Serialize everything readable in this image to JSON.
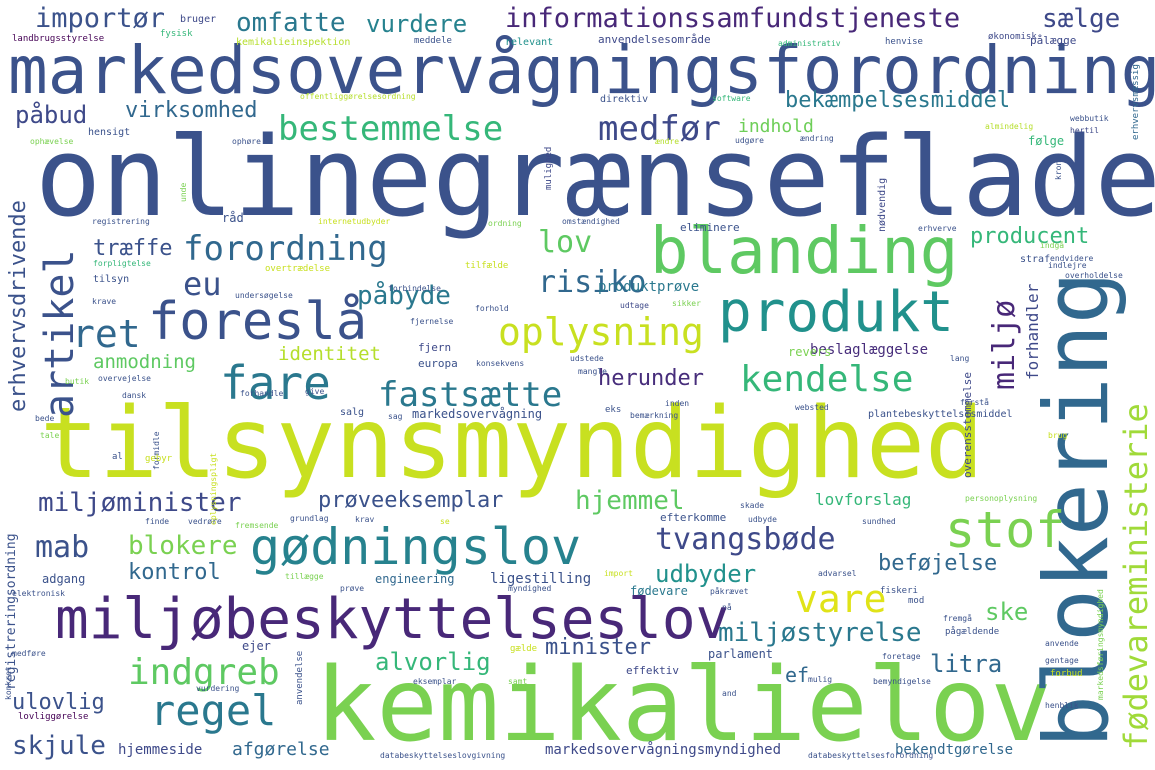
{
  "words": [
    {
      "text": "onlinegrænseflade",
      "color": "#3b528b"
    },
    {
      "text": "tilsynsmyndighed",
      "color": "#c8e020"
    },
    {
      "text": "kemikalielov",
      "color": "#7ad151"
    },
    {
      "text": "markedsovervågningsforordning",
      "color": "#3b528b"
    },
    {
      "text": "blokering",
      "color": "#31688e"
    },
    {
      "text": "miljøbeskyttelseslov",
      "color": "#482878"
    },
    {
      "text": "gødningslov",
      "color": "#26828e"
    },
    {
      "text": "produkt",
      "color": "#21918c"
    },
    {
      "text": "blanding",
      "color": "#5ec962"
    },
    {
      "text": "foreslå",
      "color": "#3b528b"
    },
    {
      "text": "fare",
      "color": "#2a788e"
    },
    {
      "text": "stof",
      "color": "#7ad151"
    },
    {
      "text": "bestemmelse",
      "color": "#35b779"
    },
    {
      "text": "oplysning",
      "color": "#c8e020"
    },
    {
      "text": "fødevareministerie",
      "color": "#a0da39"
    },
    {
      "text": "regel",
      "color": "#2a788e"
    },
    {
      "text": "indgreb",
      "color": "#5ec962"
    },
    {
      "text": "informationssamfundstjeneste",
      "color": "#482878"
    },
    {
      "text": "medfør",
      "color": "#3e4989"
    },
    {
      "text": "forordning",
      "color": "#31688e"
    },
    {
      "text": "artikel",
      "color": "#3b528b"
    },
    {
      "text": "fastsætte",
      "color": "#2a788e"
    },
    {
      "text": "kendelse",
      "color": "#35b779"
    },
    {
      "text": "tvangsbøde",
      "color": "#3e4989"
    },
    {
      "text": "erhvervsdrivende",
      "color": "#3b528b"
    },
    {
      "text": "miljø",
      "color": "#482878"
    },
    {
      "text": "vare",
      "color": "#e0e318"
    },
    {
      "text": "miljøstyrelse",
      "color": "#2a788e"
    },
    {
      "text": "importør",
      "color": "#3b528b"
    },
    {
      "text": "omfatte",
      "color": "#2a788e"
    },
    {
      "text": "vurdere",
      "color": "#26828e"
    },
    {
      "text": "sælge",
      "color": "#3e4989"
    },
    {
      "text": "bekæmpelsesmiddel",
      "color": "#2a788e"
    },
    {
      "text": "påbud",
      "color": "#3e4989"
    },
    {
      "text": "virksomhed",
      "color": "#31688e"
    },
    {
      "text": "indhold",
      "color": "#6ece58"
    },
    {
      "text": "ret",
      "color": "#31688e"
    },
    {
      "text": "eu",
      "color": "#3b528b"
    },
    {
      "text": "lov",
      "color": "#5ec962"
    },
    {
      "text": "producent",
      "color": "#35b779"
    },
    {
      "text": "risiko",
      "color": "#31688e"
    },
    {
      "text": "påbyde",
      "color": "#2a788e"
    },
    {
      "text": "træffe",
      "color": "#3b528b"
    },
    {
      "text": "herunder",
      "color": "#472d7b"
    },
    {
      "text": "forhandler",
      "color": "#3e4989"
    },
    {
      "text": "identitet",
      "color": "#b5de2b"
    },
    {
      "text": "anmodning",
      "color": "#5ec962"
    },
    {
      "text": "miljøminister",
      "color": "#3e4989"
    },
    {
      "text": "prøveeksemplar",
      "color": "#3b528b"
    },
    {
      "text": "hjemmel",
      "color": "#5ec962"
    },
    {
      "text": "lovforslag",
      "color": "#35b779"
    },
    {
      "text": "mab",
      "color": "#3b528b"
    },
    {
      "text": "blokere",
      "color": "#7ad151"
    },
    {
      "text": "kontrol",
      "color": "#31688e"
    },
    {
      "text": "beføjelse",
      "color": "#31688e"
    },
    {
      "text": "udbyder",
      "color": "#21918c"
    },
    {
      "text": "ske",
      "color": "#5ec962"
    },
    {
      "text": "minister",
      "color": "#3b528b"
    },
    {
      "text": "alvorlig",
      "color": "#35b779"
    },
    {
      "text": "litra",
      "color": "#31688e"
    },
    {
      "text": "ef",
      "color": "#31688e"
    },
    {
      "text": "ulovlig",
      "color": "#3b528b"
    },
    {
      "text": "skjule",
      "color": "#3b528b"
    },
    {
      "text": "afgørelse",
      "color": "#31688e"
    },
    {
      "text": "hjemmeside",
      "color": "#3e4989"
    },
    {
      "text": "markedsovervågningsmyndighed",
      "color": "#3e4989"
    },
    {
      "text": "bekendtgørelse",
      "color": "#31688e"
    },
    {
      "text": "produktprøve",
      "color": "#2a788e"
    },
    {
      "text": "beslaglæggelse",
      "color": "#472d7b"
    },
    {
      "text": "registreringsordning",
      "color": "#3b528b"
    },
    {
      "text": "adgang",
      "color": "#3b528b"
    },
    {
      "text": "ligestilling",
      "color": "#3b528b"
    },
    {
      "text": "engineering",
      "color": "#31688e"
    },
    {
      "text": "fødevare",
      "color": "#2a788e"
    },
    {
      "text": "markedsovervågning",
      "color": "#3b528b"
    },
    {
      "text": "europa",
      "color": "#3b528b"
    },
    {
      "text": "fjern",
      "color": "#3e4989"
    },
    {
      "text": "overensstemmelse",
      "color": "#3e4989"
    },
    {
      "text": "revers",
      "color": "#7ad151"
    },
    {
      "text": "ejer",
      "color": "#3e4989"
    },
    {
      "text": "parlament",
      "color": "#3b528b"
    },
    {
      "text": "effektiv",
      "color": "#3e4989"
    },
    {
      "text": "efterkomme",
      "color": "#3b528b"
    },
    {
      "text": "landbrugsstyrelse",
      "color": "#440154"
    },
    {
      "text": "bruger",
      "color": "#3e4989"
    },
    {
      "text": "fysisk",
      "color": "#35b779"
    },
    {
      "text": "kemikalieinspektion",
      "color": "#b5de2b"
    },
    {
      "text": "meddele",
      "color": "#3b528b"
    },
    {
      "text": "relevant",
      "color": "#21918c"
    },
    {
      "text": "anvendelsesområde",
      "color": "#3e4989"
    },
    {
      "text": "administrativ",
      "color": "#35b779"
    },
    {
      "text": "henvise",
      "color": "#3b528b"
    },
    {
      "text": "økonomisk",
      "color": "#3e4989"
    },
    {
      "text": "pålægge",
      "color": "#3e4989"
    },
    {
      "text": "erhvervsmæssig",
      "color": "#31688e"
    },
    {
      "text": "offentliggørelsesordning",
      "color": "#b5de2b"
    },
    {
      "text": "direktiv",
      "color": "#3b528b"
    },
    {
      "text": "software",
      "color": "#35b779"
    },
    {
      "text": "webbutik",
      "color": "#3b528b"
    },
    {
      "text": "hertil",
      "color": "#3e4989"
    },
    {
      "text": "almindelig",
      "color": "#b5de2b"
    },
    {
      "text": "hensigt",
      "color": "#3b528b"
    },
    {
      "text": "ophøre",
      "color": "#3b528b"
    },
    {
      "text": "ophævelse",
      "color": "#7ad151"
    },
    {
      "text": "ændre",
      "color": "#b5de2b"
    },
    {
      "text": "udgøre",
      "color": "#3b528b"
    },
    {
      "text": "ændring",
      "color": "#3b528b"
    },
    {
      "text": "følge",
      "color": "#35b779"
    },
    {
      "text": "unde",
      "color": "#7ad151"
    },
    {
      "text": "mulighed",
      "color": "#3e4989"
    },
    {
      "text": "nødvendig",
      "color": "#3e4989"
    },
    {
      "text": "krone",
      "color": "#3b528b"
    },
    {
      "text": "registrering",
      "color": "#3b528b"
    },
    {
      "text": "råd",
      "color": "#3b528b"
    },
    {
      "text": "internetudbyder",
      "color": "#c8e020"
    },
    {
      "text": "ordning",
      "color": "#7ad151"
    },
    {
      "text": "omstændighed",
      "color": "#3b528b"
    },
    {
      "text": "eliminere",
      "color": "#3b528b"
    },
    {
      "text": "erhverve",
      "color": "#3b528b"
    },
    {
      "text": "indgå",
      "color": "#7ad151"
    },
    {
      "text": "endvidere",
      "color": "#3b528b"
    },
    {
      "text": "forpligtelse",
      "color": "#35b779"
    },
    {
      "text": "tilfælde",
      "color": "#c8e020"
    },
    {
      "text": "indlejre",
      "color": "#3b528b"
    },
    {
      "text": "straf",
      "color": "#3b528b"
    },
    {
      "text": "overholdelse",
      "color": "#3b528b"
    },
    {
      "text": "tilsyn",
      "color": "#3b528b"
    },
    {
      "text": "overtrædelse",
      "color": "#c8e020"
    },
    {
      "text": "krave",
      "color": "#3b528b"
    },
    {
      "text": "undersøgelse",
      "color": "#3b528b"
    },
    {
      "text": "forbindelse",
      "color": "#3b528b"
    },
    {
      "text": "forhold",
      "color": "#3b528b"
    },
    {
      "text": "udtage",
      "color": "#3e4989"
    },
    {
      "text": "sikker",
      "color": "#7ad151"
    },
    {
      "text": "fjernelse",
      "color": "#3b528b"
    },
    {
      "text": "konsekvens",
      "color": "#3b528b"
    },
    {
      "text": "udstede",
      "color": "#3b528b"
    },
    {
      "text": "mangle",
      "color": "#3b528b"
    },
    {
      "text": "lang",
      "color": "#3b528b"
    },
    {
      "text": "butik",
      "color": "#7ad151"
    },
    {
      "text": "overvejelse",
      "color": "#3b528b"
    },
    {
      "text": "dansk",
      "color": "#3b528b"
    },
    {
      "text": "give",
      "color": "#3b528b"
    },
    {
      "text": "forhandle",
      "color": "#3b528b"
    },
    {
      "text": "salg",
      "color": "#3b528b"
    },
    {
      "text": "websted",
      "color": "#3b528b"
    },
    {
      "text": "forstå",
      "color": "#3b528b"
    },
    {
      "text": "plantebeskyttelsesmiddel",
      "color": "#3b528b"
    },
    {
      "text": "bede",
      "color": "#3b528b"
    },
    {
      "text": "sag",
      "color": "#3b528b"
    },
    {
      "text": "eks",
      "color": "#3b528b"
    },
    {
      "text": "inden",
      "color": "#3b528b"
    },
    {
      "text": "bemærkning",
      "color": "#3b528b"
    },
    {
      "text": "tale",
      "color": "#7ad151"
    },
    {
      "text": "formidle",
      "color": "#3b528b"
    },
    {
      "text": "brug",
      "color": "#c8e020"
    },
    {
      "text": "al",
      "color": "#3b528b"
    },
    {
      "text": "gebyr",
      "color": "#c8e020"
    },
    {
      "text": "oplysningspligt",
      "color": "#c8e020"
    },
    {
      "text": "skade",
      "color": "#3b528b"
    },
    {
      "text": "personoplysning",
      "color": "#7ad151"
    },
    {
      "text": "finde",
      "color": "#3b528b"
    },
    {
      "text": "vedrøre",
      "color": "#3b528b"
    },
    {
      "text": "fremsende",
      "color": "#7ad151"
    },
    {
      "text": "grundlag",
      "color": "#3b528b"
    },
    {
      "text": "krav",
      "color": "#3b528b"
    },
    {
      "text": "se",
      "color": "#c8e020"
    },
    {
      "text": "udbyde",
      "color": "#3b528b"
    },
    {
      "text": "sundhed",
      "color": "#3b528b"
    },
    {
      "text": "tillægge",
      "color": "#7ad151"
    },
    {
      "text": "prøve",
      "color": "#3b528b"
    },
    {
      "text": "import",
      "color": "#c8e020"
    },
    {
      "text": "advarsel",
      "color": "#3b528b"
    },
    {
      "text": "elektronisk",
      "color": "#3b528b"
    },
    {
      "text": "myndighed",
      "color": "#3b528b"
    },
    {
      "text": "påkrævet",
      "color": "#3b528b"
    },
    {
      "text": "fiskeri",
      "color": "#3b528b"
    },
    {
      "text": "mod",
      "color": "#3b528b"
    },
    {
      "text": "nå",
      "color": "#3b528b"
    },
    {
      "text": "fremgå",
      "color": "#3b528b"
    },
    {
      "text": "pågældende",
      "color": "#3b528b"
    },
    {
      "text": "anvende",
      "color": "#3b528b"
    },
    {
      "text": "konkret",
      "color": "#3b528b"
    },
    {
      "text": "medføre",
      "color": "#3b528b"
    },
    {
      "text": "gælde",
      "color": "#c8e020"
    },
    {
      "text": "foretage",
      "color": "#3b528b"
    },
    {
      "text": "gentage",
      "color": "#3b528b"
    },
    {
      "text": "forbud",
      "color": "#c8e020"
    },
    {
      "text": "anvendelse",
      "color": "#3b528b"
    },
    {
      "text": "eksemplar",
      "color": "#3b528b"
    },
    {
      "text": "samt",
      "color": "#7ad151"
    },
    {
      "text": "mulig",
      "color": "#3b528b"
    },
    {
      "text": "bemyndigelse",
      "color": "#3b528b"
    },
    {
      "text": "vurdering",
      "color": "#3b528b"
    },
    {
      "text": "and",
      "color": "#3b528b"
    },
    {
      "text": "henblik",
      "color": "#3b528b"
    },
    {
      "text": "lovliggørelse",
      "color": "#440154"
    },
    {
      "text": "databeskyttelseslovgivning",
      "color": "#3b528b"
    },
    {
      "text": "databeskyttelsesforordning",
      "color": "#3b528b"
    },
    {
      "text": "markedsføringsmyndighed",
      "color": "#7ad151"
    }
  ]
}
